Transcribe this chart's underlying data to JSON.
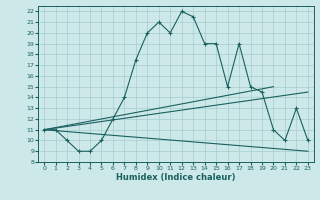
{
  "title": "",
  "xlabel": "Humidex (Indice chaleur)",
  "bg_color": "#cde8e8",
  "line_color": "#1a6060",
  "grid_color": "#a8cccc",
  "xlim": [
    -0.5,
    23.5
  ],
  "ylim": [
    8,
    22.5
  ],
  "x_ticks": [
    0,
    1,
    2,
    3,
    4,
    5,
    6,
    7,
    8,
    9,
    10,
    11,
    12,
    13,
    14,
    15,
    16,
    17,
    18,
    19,
    20,
    21,
    22,
    23
  ],
  "y_ticks": [
    8,
    9,
    10,
    11,
    12,
    13,
    14,
    15,
    16,
    17,
    18,
    19,
    20,
    21,
    22
  ],
  "main_line_x": [
    0,
    1,
    2,
    3,
    4,
    5,
    6,
    7,
    8,
    9,
    10,
    11,
    12,
    13,
    14,
    15,
    16,
    17,
    18,
    19,
    20,
    21,
    22,
    23
  ],
  "main_line_y": [
    11,
    11,
    10,
    9,
    9,
    10,
    12,
    14,
    17.5,
    20,
    21,
    20,
    22,
    21.5,
    19,
    19,
    15,
    19,
    15,
    14.5,
    11,
    10,
    13,
    10
  ],
  "line2_x": [
    0,
    20
  ],
  "line2_y": [
    11,
    15
  ],
  "line3_x": [
    0,
    23
  ],
  "line3_y": [
    11,
    14.5
  ],
  "line4_x": [
    0,
    23
  ],
  "line4_y": [
    11,
    9
  ]
}
